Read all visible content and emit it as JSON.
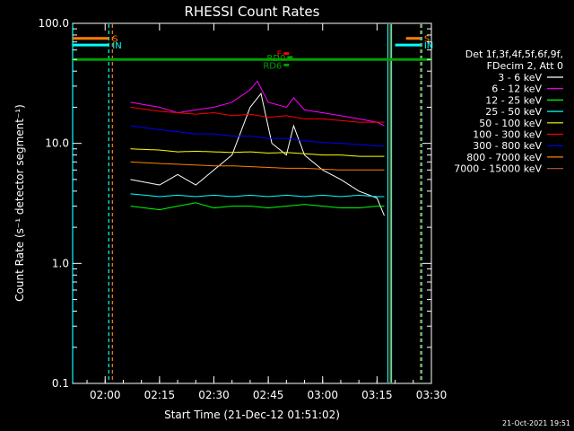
{
  "chart_data": {
    "type": "line",
    "title": "RHESSI Count Rates",
    "xlabel": "Start Time (21-Dec-12 01:51:02)",
    "ylabel": "Count Rate (s⁻¹ detector segment⁻¹)",
    "yscale": "log",
    "ylim": [
      0.1,
      100
    ],
    "xlim": [
      "01:51:02",
      "03:30:00"
    ],
    "x_ticks": [
      "02:00",
      "02:15",
      "02:30",
      "02:45",
      "03:00",
      "03:15",
      "03:30"
    ],
    "y_ticks": [
      "0.1",
      "1.0",
      "10.0",
      "100.0"
    ],
    "legend": {
      "header": [
        "Det 1f,3f,4f,5f,6f,9f,",
        "FDecim 2, Att 0"
      ],
      "placement": "right"
    },
    "series": [
      {
        "name": "3 - 6 keV",
        "color": "#ffffff",
        "points": [
          [
            "02:07",
            5.0
          ],
          [
            "02:15",
            4.5
          ],
          [
            "02:20",
            5.5
          ],
          [
            "02:25",
            4.5
          ],
          [
            "02:30",
            6.0
          ],
          [
            "02:35",
            8.0
          ],
          [
            "02:40",
            20.0
          ],
          [
            "02:43",
            26.0
          ],
          [
            "02:46",
            10.0
          ],
          [
            "02:50",
            8.0
          ],
          [
            "02:52",
            14.0
          ],
          [
            "02:55",
            8.0
          ],
          [
            "03:00",
            6.0
          ],
          [
            "03:05",
            5.0
          ],
          [
            "03:10",
            4.0
          ],
          [
            "03:15",
            3.5
          ],
          [
            "03:17",
            2.5
          ]
        ]
      },
      {
        "name": "6 - 12 keV",
        "color": "#ff00ff",
        "points": [
          [
            "02:07",
            22.0
          ],
          [
            "02:15",
            20.0
          ],
          [
            "02:20",
            18.0
          ],
          [
            "02:25",
            19.0
          ],
          [
            "02:30",
            20.0
          ],
          [
            "02:35",
            22.0
          ],
          [
            "02:40",
            28.0
          ],
          [
            "02:42",
            33.0
          ],
          [
            "02:45",
            22.0
          ],
          [
            "02:50",
            20.0
          ],
          [
            "02:52",
            24.0
          ],
          [
            "02:55",
            19.0
          ],
          [
            "03:00",
            18.0
          ],
          [
            "03:05",
            17.0
          ],
          [
            "03:10",
            16.0
          ],
          [
            "03:15",
            15.0
          ],
          [
            "03:17",
            14.0
          ]
        ]
      },
      {
        "name": "12 - 25 keV",
        "color": "#00ff00",
        "points": [
          [
            "02:07",
            3.0
          ],
          [
            "02:15",
            2.8
          ],
          [
            "02:20",
            3.0
          ],
          [
            "02:25",
            3.2
          ],
          [
            "02:30",
            2.9
          ],
          [
            "02:35",
            3.0
          ],
          [
            "02:40",
            3.0
          ],
          [
            "02:45",
            2.9
          ],
          [
            "02:50",
            3.0
          ],
          [
            "02:55",
            3.1
          ],
          [
            "03:00",
            3.0
          ],
          [
            "03:05",
            2.9
          ],
          [
            "03:10",
            2.9
          ],
          [
            "03:15",
            3.0
          ],
          [
            "03:17",
            3.0
          ]
        ]
      },
      {
        "name": "25 - 50 keV",
        "color": "#00ffff",
        "points": [
          [
            "02:07",
            3.8
          ],
          [
            "02:15",
            3.6
          ],
          [
            "02:20",
            3.7
          ],
          [
            "02:25",
            3.6
          ],
          [
            "02:30",
            3.7
          ],
          [
            "02:35",
            3.6
          ],
          [
            "02:40",
            3.7
          ],
          [
            "02:45",
            3.6
          ],
          [
            "02:50",
            3.7
          ],
          [
            "02:55",
            3.6
          ],
          [
            "03:00",
            3.7
          ],
          [
            "03:05",
            3.6
          ],
          [
            "03:10",
            3.7
          ],
          [
            "03:15",
            3.6
          ],
          [
            "03:17",
            3.6
          ]
        ]
      },
      {
        "name": "50 - 100 keV",
        "color": "#ffff00",
        "points": [
          [
            "02:07",
            9.0
          ],
          [
            "02:15",
            8.8
          ],
          [
            "02:20",
            8.5
          ],
          [
            "02:25",
            8.6
          ],
          [
            "02:30",
            8.5
          ],
          [
            "02:35",
            8.4
          ],
          [
            "02:40",
            8.5
          ],
          [
            "02:45",
            8.3
          ],
          [
            "02:50",
            8.4
          ],
          [
            "02:55",
            8.2
          ],
          [
            "03:00",
            8.0
          ],
          [
            "03:05",
            8.0
          ],
          [
            "03:10",
            7.8
          ],
          [
            "03:15",
            7.8
          ],
          [
            "03:17",
            7.8
          ]
        ]
      },
      {
        "name": "100 - 300 keV",
        "color": "#ff0000",
        "points": [
          [
            "02:07",
            20.0
          ],
          [
            "02:15",
            18.5
          ],
          [
            "02:20",
            18.0
          ],
          [
            "02:25",
            17.5
          ],
          [
            "02:30",
            18.0
          ],
          [
            "02:35",
            17.0
          ],
          [
            "02:40",
            17.5
          ],
          [
            "02:45",
            16.5
          ],
          [
            "02:50",
            17.0
          ],
          [
            "02:55",
            16.0
          ],
          [
            "03:00",
            16.0
          ],
          [
            "03:05",
            15.5
          ],
          [
            "03:10",
            15.0
          ],
          [
            "03:15",
            15.0
          ],
          [
            "03:17",
            15.0
          ]
        ]
      },
      {
        "name": "300 - 800 keV",
        "color": "#0000ff",
        "points": [
          [
            "02:07",
            14.0
          ],
          [
            "02:15",
            13.0
          ],
          [
            "02:20",
            12.5
          ],
          [
            "02:25",
            12.0
          ],
          [
            "02:30",
            12.0
          ],
          [
            "02:35",
            11.5
          ],
          [
            "02:40",
            11.5
          ],
          [
            "02:45",
            11.0
          ],
          [
            "02:50",
            11.0
          ],
          [
            "02:55",
            10.5
          ],
          [
            "03:00",
            10.2
          ],
          [
            "03:05",
            10.0
          ],
          [
            "03:10",
            9.8
          ],
          [
            "03:15",
            9.5
          ],
          [
            "03:17",
            9.5
          ]
        ]
      },
      {
        "name": "800 - 7000 keV",
        "color": "#ff8000",
        "points": [
          [
            "02:07",
            7.0
          ],
          [
            "02:15",
            6.8
          ],
          [
            "02:20",
            6.7
          ],
          [
            "02:25",
            6.6
          ],
          [
            "02:30",
            6.5
          ],
          [
            "02:35",
            6.5
          ],
          [
            "02:40",
            6.4
          ],
          [
            "02:45",
            6.3
          ],
          [
            "02:50",
            6.2
          ],
          [
            "02:55",
            6.2
          ],
          [
            "03:00",
            6.1
          ],
          [
            "03:05",
            6.0
          ],
          [
            "03:10",
            6.0
          ],
          [
            "03:15",
            6.0
          ],
          [
            "03:17",
            6.0
          ]
        ]
      },
      {
        "name": "7000 - 15000 keV",
        "color": "#a0522d",
        "points": []
      }
    ],
    "reference_lines": [
      {
        "value": 50,
        "color": "#00a000"
      }
    ],
    "annotations": [
      {
        "label": "S",
        "color": "#ff8000",
        "x_range": [
          "01:51:02",
          "02:01"
        ],
        "y": 75
      },
      {
        "label": "IN",
        "color": "#00ffff",
        "x_range": [
          "01:51:02",
          "02:01"
        ],
        "y": 66
      },
      {
        "label": "S",
        "color": "#ff8000",
        "x_range": [
          "03:23",
          "03:27"
        ],
        "y": 75
      },
      {
        "label": "IN",
        "color": "#00ffff",
        "x_range": [
          "03:20",
          "03:27"
        ],
        "y": 66
      },
      {
        "label": "F",
        "color": "#ff0000",
        "x": "02:50",
        "y": 56
      },
      {
        "label": "RD0",
        "color": "#00a000",
        "x": "02:51",
        "y": 52
      },
      {
        "label": "RD6",
        "color": "#00a000",
        "x": "02:50",
        "y": 45
      }
    ],
    "vertical_markers": [
      {
        "x": "01:51:02",
        "color": "#00ffff",
        "style": "solid"
      },
      {
        "x": "02:01",
        "color": "#00ffff",
        "style": "dashed"
      },
      {
        "x": "02:02",
        "color": "#ff8000",
        "style": "dashed"
      },
      {
        "x": "03:18",
        "color": "#00ffff",
        "style": "solid"
      },
      {
        "x": "03:18:40",
        "color": "#ff8000",
        "style": "solid"
      },
      {
        "x": "03:19",
        "color": "#00ffff",
        "style": "solid"
      },
      {
        "x": "03:27",
        "color": "#ff8000",
        "style": "dashed"
      },
      {
        "x": "03:27:20",
        "color": "#00ffff",
        "style": "dashed"
      }
    ]
  },
  "timestamp": "21-Oct-2021 19:51"
}
